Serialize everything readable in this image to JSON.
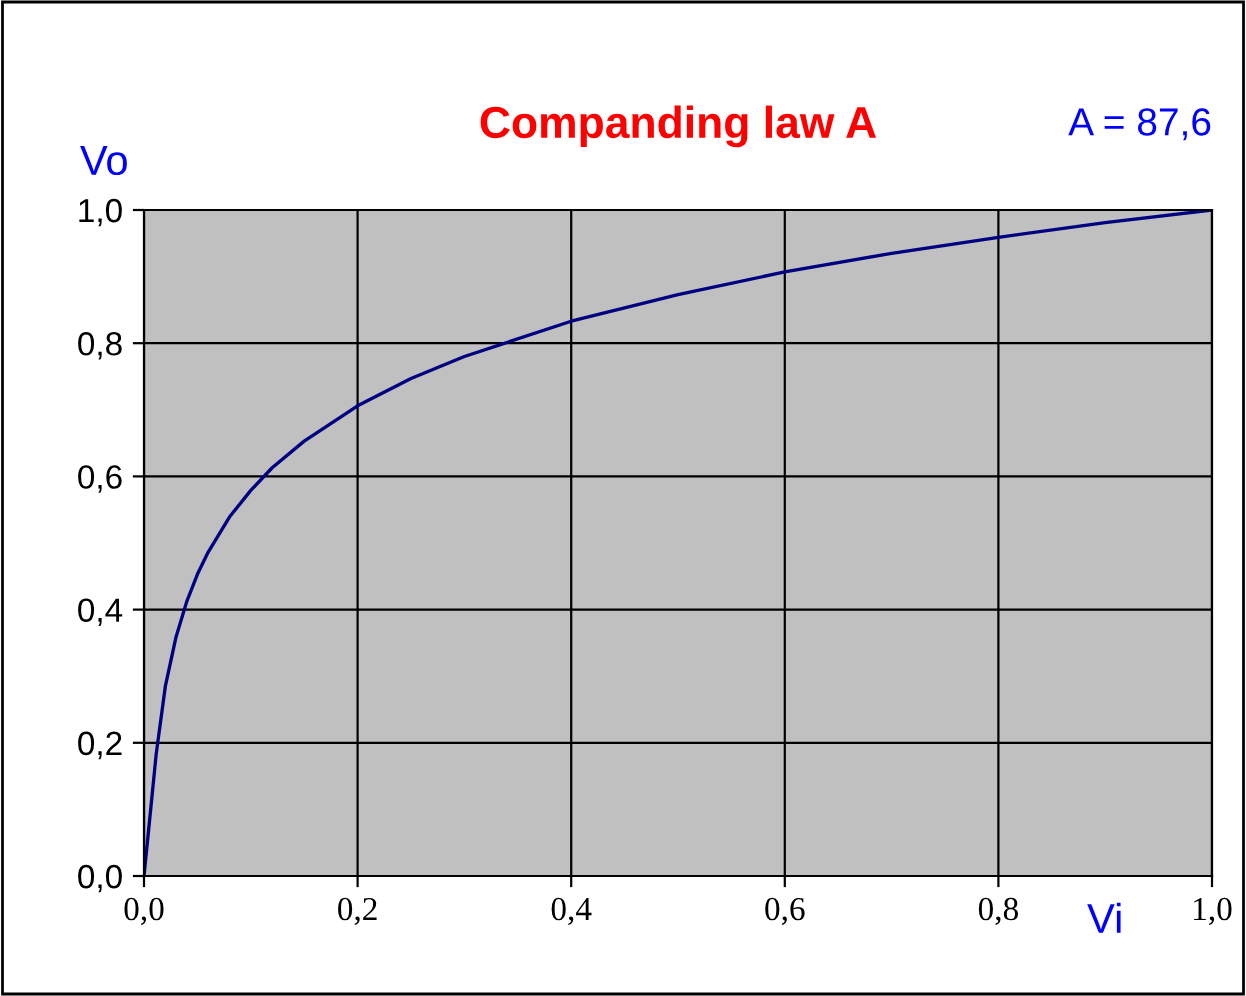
{
  "chart_data": {
    "type": "line",
    "title": "Companding law A",
    "xlabel": "Vi",
    "ylabel": "Vo",
    "annotations": [
      "A = 87,6"
    ],
    "x": [
      0,
      0.005,
      0.01,
      0.0114,
      0.02,
      0.03,
      0.04,
      0.05,
      0.06,
      0.08,
      0.1,
      0.12,
      0.15,
      0.2,
      0.25,
      0.3,
      0.4,
      0.5,
      0.6,
      0.7,
      0.8,
      0.9,
      1.0
    ],
    "series": [
      {
        "color": "#000080",
        "values": [
          0,
          0.08,
          0.16,
          0.183,
          0.285,
          0.359,
          0.412,
          0.453,
          0.486,
          0.539,
          0.579,
          0.613,
          0.653,
          0.706,
          0.747,
          0.78,
          0.833,
          0.873,
          0.907,
          0.935,
          0.959,
          0.981,
          1.0
        ]
      }
    ],
    "xlim": [
      0,
      1
    ],
    "ylim": [
      0,
      1
    ],
    "xticks": [
      {
        "value": 0,
        "label": "0,0"
      },
      {
        "value": 0.2,
        "label": "0,2"
      },
      {
        "value": 0.4,
        "label": "0,4"
      },
      {
        "value": 0.6,
        "label": "0,6"
      },
      {
        "value": 0.8,
        "label": "0,8"
      },
      {
        "value": 1.0,
        "label": "1,0"
      }
    ],
    "yticks": [
      {
        "value": 0,
        "label": "0,0"
      },
      {
        "value": 0.2,
        "label": "0,2"
      },
      {
        "value": 0.4,
        "label": "0,4"
      },
      {
        "value": 0.6,
        "label": "0,6"
      },
      {
        "value": 0.8,
        "label": "0,8"
      },
      {
        "value": 1.0,
        "label": "1,0"
      }
    ],
    "grid": true,
    "marker": "none",
    "line_style": "solid"
  }
}
